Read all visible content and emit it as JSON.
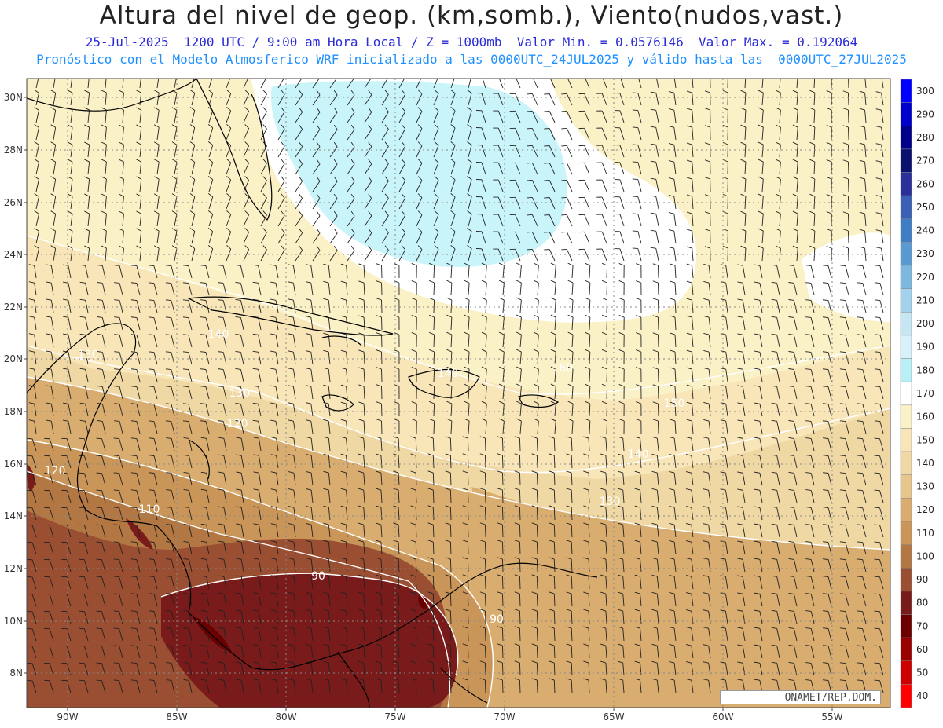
{
  "title": "Altura del nivel de geop. (km,somb.), Viento(nudos,vast.)",
  "subtitle_line1": "25-Jul-2025  1200 UTC / 9:00 am Hora Local / Z = 1000mb  Valor Min. = 0.0576146  Valor Max. = 0.192064",
  "subtitle_line2": "Pronóstico con el Modelo Atmosferico WRF inicializado a las 0000UTC_24JUL2025 y válido hasta las  0000UTC_27JUL2025",
  "credit": "ONAMET/REP.DOM.",
  "lat_labels": [
    "30N",
    "28N",
    "26N",
    "24N",
    "22N",
    "20N",
    "18N",
    "16N",
    "14N",
    "12N",
    "10N",
    "8N"
  ],
  "lon_labels": [
    "90W",
    "85W",
    "80W",
    "75W",
    "70W",
    "65W",
    "60W",
    "55W"
  ],
  "colorbar": {
    "labels": [
      "300",
      "290",
      "280",
      "270",
      "260",
      "250",
      "240",
      "230",
      "220",
      "210",
      "200",
      "190",
      "180",
      "170",
      "160",
      "150",
      "140",
      "130",
      "120",
      "110",
      "100",
      "90",
      "80",
      "70",
      "60",
      "50",
      "40"
    ],
    "colors": [
      "#0000ff",
      "#0000cc",
      "#00008b",
      "#0a1270",
      "#2b2f9a",
      "#3a5fb5",
      "#3f7dc4",
      "#5a9ad2",
      "#7cb8e0",
      "#a3d2ec",
      "#c6e6f4",
      "#d8f0fa",
      "#b8f0f6",
      "#ffffff",
      "#fbf1c6",
      "#f8e6b8",
      "#f0d8a4",
      "#e6c68c",
      "#d9ad70",
      "#c99558",
      "#b27742",
      "#9a4f32",
      "#7a1b1b",
      "#6a0000",
      "#990000",
      "#cc0000",
      "#ff0000"
    ]
  },
  "contour_labels": [
    "140",
    "130",
    "130",
    "120",
    "120",
    "110",
    "90",
    "90",
    "140",
    "140",
    "130",
    "150",
    "160"
  ],
  "colors": {
    "title": "#222222",
    "sub1": "#2a2ad8",
    "sub2": "#1e90ff",
    "coast": "#000000",
    "contour": "#ffffff"
  }
}
